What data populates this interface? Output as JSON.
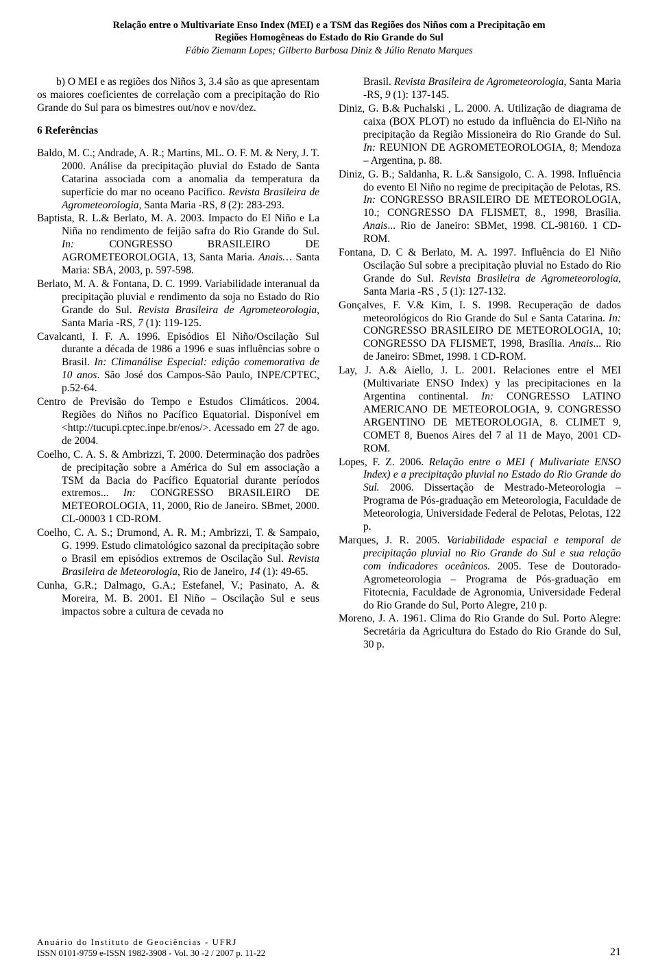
{
  "header": {
    "title_line1": "Relação entre o Multivariate Enso Index (MEI) e a TSM das Regiões dos Niños com a Precipitação em",
    "title_line2": "Regiões Homogêneas do Estado do Rio Grande do Sul",
    "authors": "Fábio Ziemann Lopes; Gilberto Barbosa Diniz & Júlio Renato Marques"
  },
  "body": {
    "intro_para": "b) O MEI e as regiões dos Niños 3, 3.4 são as que apresentam os maiores coeficientes de correlação com a precipitação do Rio Grande do Sul para os bimestres out/nov e nov/dez.",
    "section_heading": "6 Referências"
  },
  "references": [
    {
      "html": "Baldo, M. C.; Andrade, A. R.; Martins, ML. O. F. M. & Nery, J. T. 2000. Análise da precipitação pluvial do Estado de Santa Catarina associada com a anomalia da temperatura da superfície do mar no oceano Pacífico. <i>Revista Brasileira de Agrometeorologia</i>, Santa Maria -RS, <i>8</i> (2): 283-293."
    },
    {
      "html": "Baptista, R. L.& Berlato, M. A. 2003. Impacto do El Niño e La Niña no rendimento de feijão  safra do Rio Grande do Sul. <i>In:</i> CONGRESSO BRASILEIRO DE AGROMETEOROLOGIA, 13, Santa Maria. <i>Anais…</i> Santa Maria: SBA, 2003, p. 597-598."
    },
    {
      "html": "Berlato, M. A.  & Fontana, D. C. 1999. Variabilidade interanual da precipitação pluvial e rendimento da soja no Estado do Rio Grande do Sul. <i>Revista Brasileira de Agrometeorologia</i>, Santa Maria -RS, <i>7</i> (1): 119-125."
    },
    {
      "html": "Cavalcanti, I. F. A. 1996. Episódios El Niño/Oscilação Sul durante a década de 1986 a 1996 e suas influências sobre o Brasil. <i>In: Climanálise Especial: edição comemorativa de 10 anos</i>. São José dos Campos-São Paulo, INPE/CPTEC, p.52-64."
    },
    {
      "html": "Centro de Previsão do Tempo e Estudos Climáticos. 2004. Regiões do Niños no Pacífico Equatorial. Disponível em &lt;http://tucupi.cptec.inpe.br/enos/&gt;. Acessado em 27 de ago. de 2004."
    },
    {
      "html": "Coelho, C. A. S. & Ambrizzi, T. 2000. Determinação dos padrões de precipitação sobre a América do Sul em associação a TSM da Bacia do Pacífico Equatorial durante períodos extremos... <i>In:</i> CONGRESSO BRASILEIRO DE METEOROLOGIA, 11, 2000, Rio de Janeiro.  SBmet, 2000. CL-00003 1 CD-ROM."
    },
    {
      "html": "Coelho, C. A. S.; Drumond, A. R. M.; Ambrizzi, T. & Sampaio, G. 1999. Estudo climatológico sazonal da precipitação sobre o Brasil em episódios extremos de Oscilação Sul. <i>Revista Brasileira de Meteorologia</i>, Rio de Janeiro, <i>14</i> (1): 49-65."
    },
    {
      "html": "Cunha, G.R.; Dalmago, G.A.; Estefanel, V.; Pasinato, A. & Moreira, M. B. 2001. El Niño – Oscilação Sul e seus impactos sobre a cultura de cevada no Brasil. <i>Revista Brasileira de Agrometeorologia</i>, Santa Maria -RS, <i>9</i> (1): 137-145."
    },
    {
      "html": "Diniz, G. B.& Puchalski , L. 2000. A. Utilização de diagrama de caixa (BOX PLOT) no estudo da influência do El-Niño na precipitação da Região Missioneira do Rio Grande do Sul. <i>In:</i> REUNION DE AGROMETEOROLOGIA, 8; Mendoza – Argentina, p. 88."
    },
    {
      "html": "Diniz, G. B.; Saldanha, R. L.& Sansigolo, C. A. 1998. Influência do evento El Niño no regime de precipitação de Pelotas, RS. <i>In:</i> CONGRESSO BRASILEIRO DE METEOROLOGIA, 10.; CONGRESSO DA FLISMET, 8., 1998, Brasília. <i>Anais</i>... Rio de Janeiro: SBMet, 1998. CL-98160. 1 CD-ROM."
    },
    {
      "html": "Fontana, D. C & Berlato, M. A. 1997. Influência do El Niño Oscilação Sul sobre a precipitação pluvial no Estado do Rio Grande do Sul. <i>Revista Brasileira de Agrometeorologia</i>, Santa Maria -RS , <i>5</i> (1): 127-132."
    },
    {
      "html": "Gonçalves, F. V.& Kim, I. S. 1998. Recuperação de dados meteorológicos do  Rio Grande do Sul e Santa Catarina. <i>In:</i> CONGRESSO BRASILEIRO DE METEOROLOGIA, 10; CONGRESSO DA FLISMET, 1998, Brasília. <i>Anais</i>... Rio de Janeiro: SBmet, 1998. 1 CD-ROM."
    },
    {
      "html": "Lay, J. A.& Aiello, J. L. 2001. Relaciones entre el MEI (Multivariate ENSO Index) y las precipitaciones en la Argentina continental. <i>In:</i> CONGRESSO LATINO AMERICANO DE METEOROLOGIA, 9. CONGRESSO ARGENTINO DE METEOROLOGIA, 8. CLIMET 9, COMET 8, Buenos Aires del 7 al 11 de Mayo, 2001 CD-ROM."
    },
    {
      "html": "Lopes, F. Z. 2006. <i>Relação entre o MEI ( Mulivariate ENSO Index) e a precipitação pluvial no Estado do Rio Grande do Sul.</i> 2006. Dissertação de Mestrado-Meteorologia – Programa de Pós-graduação em Meteorologia, Faculdade de Meteorologia, Universidade Federal de Pelotas, Pelotas, 122 p."
    },
    {
      "html": "Marques, J. R. 2005. <i>Variabilidade espacial e temporal de precipitação pluvial no Rio Grande do Sul e sua relação com indicadores oceânicos.</i> 2005. Tese de Doutorado-Agrometeorologia  – Programa de Pós-graduação em Fitotecnia, Faculdade de Agronomia, Universidade Federal do Rio Grande do Sul, Porto Alegre, 210 p."
    },
    {
      "html": "Moreno, J. A. 1961. Clima do Rio Grande do Sul. Porto Alegre: Secretária da Agricultura do Estado do Rio Grande do Sul, 30 p."
    }
  ],
  "column_split_index": 7,
  "col2_continuation_html": "Brasil. <i>Revista Brasileira de Agrometeorologia</i>, Santa Maria -RS, <i>9</i> (1): 137-145.",
  "col1_ref7_override_html": "Cunha, G.R.; Dalmago, G.A.; Estefanel, V.; Pasinato, A. & Moreira, M. B. 2001. El Niño – Oscilação Sul e seus impactos sobre a cultura de cevada no",
  "footer": {
    "line1": "Anuário do Instituto de Geociências - UFRJ",
    "line2": "ISSN 0101-9759  e-ISSN 1982-3908  - Vol. 30 -2 / 2007    p. 11-22",
    "page": "21"
  }
}
